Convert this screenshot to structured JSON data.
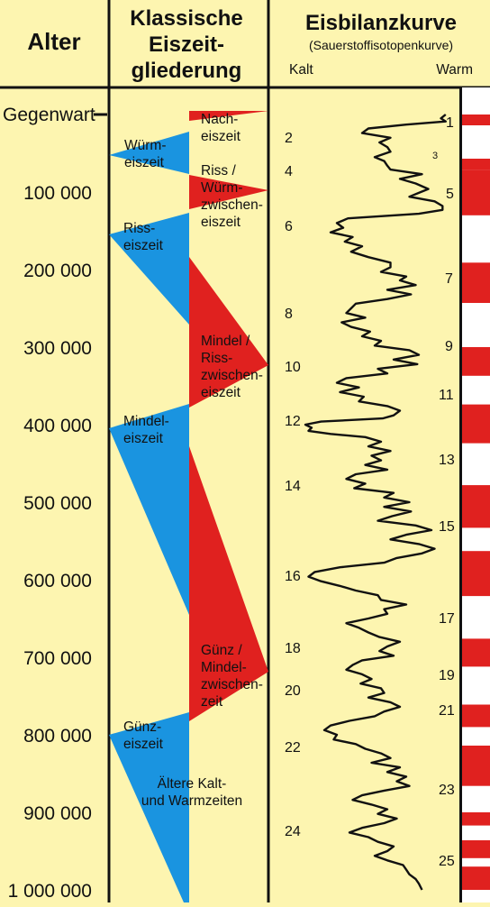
{
  "headers": {
    "age": "Alter",
    "classic_line1": "Klassische",
    "classic_line2": "Eiszeit-",
    "classic_line3": "gliederung",
    "curve_title": "Eisbilanzkurve",
    "curve_subtitle": "(Sauerstoffisotopenkurve)",
    "cold": "Kalt",
    "warm": "Warm"
  },
  "age_ticks": [
    {
      "label": "Gegenwart",
      "value": 0
    },
    {
      "label": "100 000",
      "value": 100000
    },
    {
      "label": "200 000",
      "value": 200000
    },
    {
      "label": "300 000",
      "value": 300000
    },
    {
      "label": "400 000",
      "value": 400000
    },
    {
      "label": "500 000",
      "value": 500000
    },
    {
      "label": "600 000",
      "value": 600000
    },
    {
      "label": "700 000",
      "value": 700000
    },
    {
      "label": "800 000",
      "value": 800000
    },
    {
      "label": "900 000",
      "value": 900000
    },
    {
      "label": "1 000 000",
      "value": 1000000
    }
  ],
  "glacials": [
    {
      "lines": [
        "Würm-",
        "eiszeit"
      ]
    },
    {
      "lines": [
        "Riss-",
        "eiszeit"
      ]
    },
    {
      "lines": [
        "Mindel-",
        "eiszeit"
      ]
    },
    {
      "lines": [
        "Günz-",
        "eiszeit"
      ]
    }
  ],
  "interglacials": [
    {
      "lines": [
        "Nach-",
        "eiszeit"
      ]
    },
    {
      "lines": [
        "Riss /",
        "Würm-",
        "zwischen-",
        "eiszeit"
      ]
    },
    {
      "lines": [
        "Mindel /",
        "Riss-",
        "zwischen-",
        "eiszeit"
      ]
    },
    {
      "lines": [
        "Günz /",
        "Mindel-",
        "zwischen-",
        "zeit"
      ]
    }
  ],
  "older_periods": [
    "Ältere Kalt-",
    "und Warmzeiten"
  ],
  "stage_numbers_even": [
    "2",
    "4",
    "6",
    "8",
    "10",
    "12",
    "14",
    "16",
    "18",
    "20",
    "22",
    "24"
  ],
  "stage_numbers_odd": [
    "1",
    "3",
    "5",
    "7",
    "9",
    "11",
    "13",
    "15",
    "17",
    "19",
    "21",
    "23",
    "25"
  ],
  "colors": {
    "background": "#fdf5b0",
    "cold": "#1a94e0",
    "warm": "#e0211f",
    "line": "#111111",
    "band_white": "#ffffff"
  },
  "warm_stages": [
    {
      "stage": "1",
      "start": 0,
      "end": 14000
    },
    {
      "stage": "3",
      "start": 57000,
      "end": 71000
    },
    {
      "stage": "5",
      "start": 71000,
      "end": 130000
    },
    {
      "stage": "7",
      "start": 191000,
      "end": 243000
    },
    {
      "stage": "9",
      "start": 300000,
      "end": 337000
    },
    {
      "stage": "11",
      "start": 374000,
      "end": 424000
    },
    {
      "stage": "13",
      "start": 478000,
      "end": 533000
    },
    {
      "stage": "15",
      "start": 563000,
      "end": 621000
    },
    {
      "stage": "17",
      "start": 676000,
      "end": 712000
    },
    {
      "stage": "19",
      "start": 761000,
      "end": 790000
    },
    {
      "stage": "21",
      "start": 814000,
      "end": 866000
    },
    {
      "stage": "23",
      "start": 900000,
      "end": 917000
    },
    {
      "stage": "25",
      "start": 936000,
      "end": 959000
    },
    {
      "stage": "",
      "start": 970000,
      "end": 1000000
    }
  ],
  "isotope_curve": [
    [
      0,
      0.97
    ],
    [
      5000,
      0.94
    ],
    [
      9000,
      0.97
    ],
    [
      13000,
      0.72
    ],
    [
      18000,
      0.48
    ],
    [
      24000,
      0.44
    ],
    [
      30000,
      0.62
    ],
    [
      36000,
      0.55
    ],
    [
      42000,
      0.6
    ],
    [
      48000,
      0.62
    ],
    [
      55000,
      0.52
    ],
    [
      60000,
      0.58
    ],
    [
      66000,
      0.6
    ],
    [
      71000,
      0.62
    ],
    [
      77000,
      0.82
    ],
    [
      83000,
      0.68
    ],
    [
      89000,
      0.78
    ],
    [
      96000,
      0.86
    ],
    [
      101000,
      0.8
    ],
    [
      106000,
      0.74
    ],
    [
      112000,
      0.9
    ],
    [
      118000,
      0.95
    ],
    [
      123000,
      0.95
    ],
    [
      128000,
      0.8
    ],
    [
      134000,
      0.35
    ],
    [
      140000,
      0.28
    ],
    [
      146000,
      0.32
    ],
    [
      152000,
      0.24
    ],
    [
      158000,
      0.38
    ],
    [
      164000,
      0.33
    ],
    [
      170000,
      0.44
    ],
    [
      177000,
      0.37
    ],
    [
      184000,
      0.48
    ],
    [
      191000,
      0.62
    ],
    [
      197000,
      0.62
    ],
    [
      203000,
      0.56
    ],
    [
      209000,
      0.72
    ],
    [
      214000,
      0.68
    ],
    [
      220000,
      0.78
    ],
    [
      226000,
      0.6
    ],
    [
      232000,
      0.75
    ],
    [
      238000,
      0.6
    ],
    [
      244000,
      0.4
    ],
    [
      250000,
      0.37
    ],
    [
      256000,
      0.34
    ],
    [
      262000,
      0.46
    ],
    [
      268000,
      0.31
    ],
    [
      274000,
      0.37
    ],
    [
      280000,
      0.49
    ],
    [
      286000,
      0.44
    ],
    [
      292000,
      0.56
    ],
    [
      298000,
      0.52
    ],
    [
      304000,
      0.74
    ],
    [
      310000,
      0.8
    ],
    [
      316000,
      0.64
    ],
    [
      322000,
      0.79
    ],
    [
      328000,
      0.54
    ],
    [
      334000,
      0.6
    ],
    [
      340000,
      0.34
    ],
    [
      346000,
      0.28
    ],
    [
      352000,
      0.42
    ],
    [
      358000,
      0.3
    ],
    [
      364000,
      0.45
    ],
    [
      370000,
      0.42
    ],
    [
      376000,
      0.6
    ],
    [
      382000,
      0.68
    ],
    [
      388000,
      0.64
    ],
    [
      392000,
      0.57
    ],
    [
      396000,
      0.18
    ],
    [
      400000,
      0.08
    ],
    [
      404000,
      0.12
    ],
    [
      408000,
      0.1
    ],
    [
      412000,
      0.24
    ],
    [
      416000,
      0.46
    ],
    [
      422000,
      0.56
    ],
    [
      428000,
      0.48
    ],
    [
      434000,
      0.62
    ],
    [
      440000,
      0.5
    ],
    [
      446000,
      0.56
    ],
    [
      452000,
      0.46
    ],
    [
      458000,
      0.6
    ],
    [
      464000,
      0.4
    ],
    [
      470000,
      0.34
    ],
    [
      476000,
      0.46
    ],
    [
      482000,
      0.39
    ],
    [
      488000,
      0.64
    ],
    [
      494000,
      0.58
    ],
    [
      500000,
      0.74
    ],
    [
      506000,
      0.58
    ],
    [
      512000,
      0.75
    ],
    [
      518000,
      0.63
    ],
    [
      524000,
      0.54
    ],
    [
      530000,
      0.78
    ],
    [
      536000,
      0.88
    ],
    [
      542000,
      0.72
    ],
    [
      548000,
      0.62
    ],
    [
      554000,
      0.8
    ],
    [
      560000,
      0.9
    ],
    [
      566000,
      0.82
    ],
    [
      572000,
      0.66
    ],
    [
      578000,
      0.58
    ],
    [
      584000,
      0.3
    ],
    [
      590000,
      0.14
    ],
    [
      596000,
      0.1
    ],
    [
      602000,
      0.18
    ],
    [
      608000,
      0.3
    ],
    [
      614000,
      0.4
    ],
    [
      620000,
      0.54
    ],
    [
      626000,
      0.56
    ],
    [
      632000,
      0.72
    ],
    [
      638000,
      0.58
    ],
    [
      644000,
      0.6
    ],
    [
      650000,
      0.48
    ],
    [
      656000,
      0.34
    ],
    [
      662000,
      0.42
    ],
    [
      668000,
      0.48
    ],
    [
      674000,
      0.55
    ],
    [
      680000,
      0.68
    ],
    [
      686000,
      0.6
    ],
    [
      692000,
      0.55
    ],
    [
      698000,
      0.64
    ],
    [
      704000,
      0.44
    ],
    [
      710000,
      0.38
    ],
    [
      716000,
      0.34
    ],
    [
      722000,
      0.44
    ],
    [
      728000,
      0.5
    ],
    [
      734000,
      0.43
    ],
    [
      740000,
      0.56
    ],
    [
      746000,
      0.58
    ],
    [
      752000,
      0.48
    ],
    [
      758000,
      0.62
    ],
    [
      764000,
      0.68
    ],
    [
      770000,
      0.58
    ],
    [
      776000,
      0.52
    ],
    [
      782000,
      0.36
    ],
    [
      788000,
      0.24
    ],
    [
      794000,
      0.2
    ],
    [
      800000,
      0.28
    ],
    [
      806000,
      0.26
    ],
    [
      812000,
      0.4
    ],
    [
      818000,
      0.46
    ],
    [
      824000,
      0.56
    ],
    [
      830000,
      0.62
    ],
    [
      836000,
      0.5
    ],
    [
      842000,
      0.68
    ],
    [
      848000,
      0.6
    ],
    [
      854000,
      0.72
    ],
    [
      860000,
      0.66
    ],
    [
      866000,
      0.74
    ],
    [
      872000,
      0.58
    ],
    [
      878000,
      0.44
    ],
    [
      884000,
      0.38
    ],
    [
      890000,
      0.5
    ],
    [
      896000,
      0.6
    ],
    [
      902000,
      0.54
    ],
    [
      908000,
      0.66
    ],
    [
      914000,
      0.58
    ],
    [
      920000,
      0.44
    ],
    [
      926000,
      0.36
    ],
    [
      932000,
      0.48
    ],
    [
      938000,
      0.54
    ],
    [
      944000,
      0.64
    ],
    [
      950000,
      0.6
    ],
    [
      956000,
      0.52
    ],
    [
      962000,
      0.6
    ],
    [
      968000,
      0.7
    ],
    [
      974000,
      0.72
    ],
    [
      980000,
      0.74
    ],
    [
      986000,
      0.78
    ],
    [
      992000,
      0.8
    ],
    [
      1000000,
      0.82
    ]
  ]
}
